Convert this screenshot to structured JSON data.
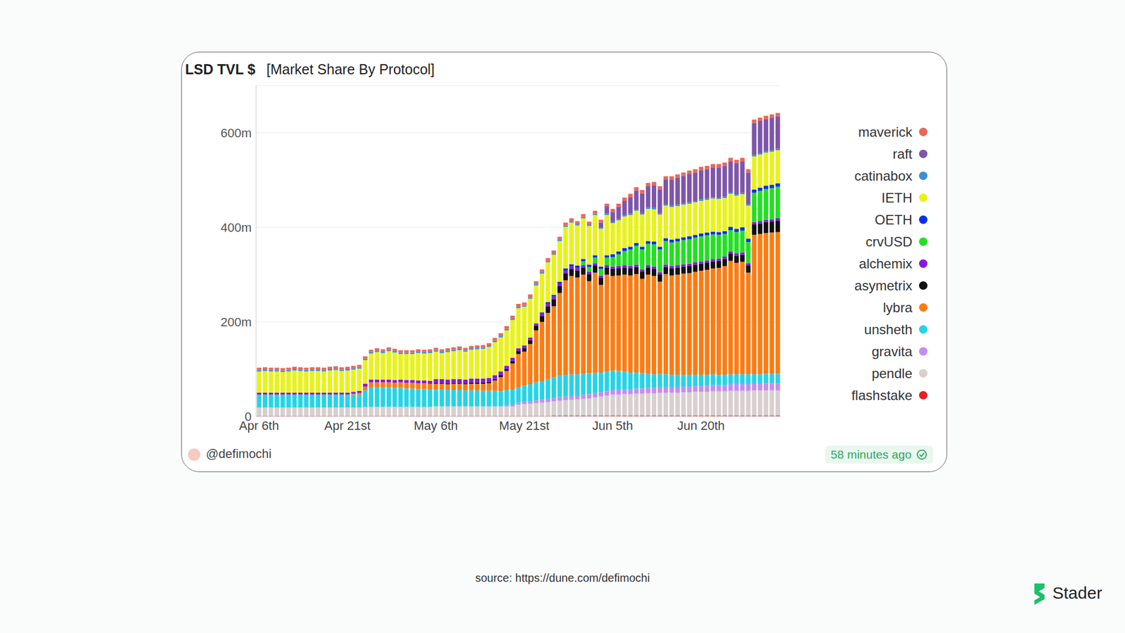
{
  "chart_data": {
    "type": "bar",
    "title": "LSD TVL $",
    "subtitle": "[Market Share By Protocol]",
    "credit": "@defimochi",
    "updated": "58 minutes ago",
    "categories": [
      "Apr 6th",
      null,
      null,
      null,
      null,
      null,
      null,
      null,
      null,
      null,
      null,
      null,
      null,
      null,
      null,
      "Apr 21st",
      null,
      null,
      null,
      null,
      null,
      null,
      null,
      null,
      null,
      null,
      null,
      null,
      null,
      null,
      "May 6th",
      null,
      null,
      null,
      null,
      null,
      null,
      null,
      null,
      null,
      null,
      null,
      null,
      null,
      null,
      "May 21st",
      null,
      null,
      null,
      null,
      null,
      null,
      null,
      null,
      null,
      null,
      null,
      null,
      null,
      null,
      "Jun 5th",
      null,
      null,
      null,
      null,
      null,
      null,
      null,
      null,
      null,
      null,
      null,
      null,
      null,
      null,
      "Jun 20th",
      null,
      null,
      null,
      null,
      null,
      null,
      null,
      null,
      null,
      null,
      null,
      null,
      null
    ],
    "ylim": [
      0,
      700
    ],
    "yticks": [
      0,
      {
        "value": 200,
        "label": "200m"
      },
      {
        "value": 400,
        "label": "400m"
      },
      {
        "value": 600,
        "label": "600m"
      }
    ],
    "grid": true,
    "stacked": true,
    "legend": "right",
    "series": [
      {
        "name": "flashstake",
        "color": "#e3231f",
        "values": [
          1,
          1,
          1,
          1,
          1,
          1,
          1,
          1,
          1,
          1,
          1,
          1,
          1,
          1,
          1,
          1,
          1,
          1,
          1,
          1,
          1,
          1,
          1,
          1,
          1,
          1,
          1,
          1,
          1,
          1,
          1,
          1,
          1,
          1,
          1,
          1,
          1,
          1,
          1,
          1,
          1,
          1,
          1,
          1,
          1,
          1,
          1,
          1,
          1,
          1,
          2,
          2,
          2,
          2,
          2,
          2,
          2,
          2,
          2,
          2,
          2,
          2,
          2,
          2,
          2,
          2,
          2,
          2,
          2,
          2,
          2,
          2,
          2,
          2,
          2,
          2,
          2,
          2,
          2,
          2,
          2,
          2,
          2,
          2,
          2,
          2,
          2,
          2,
          2
        ]
      },
      {
        "name": "pendle",
        "color": "#d9cfcf",
        "values": [
          18,
          18,
          18,
          18,
          18,
          18,
          18,
          18,
          18,
          18,
          18,
          18,
          18,
          18,
          18,
          18,
          18,
          18,
          19,
          19,
          19,
          19,
          19,
          19,
          19,
          19,
          19,
          19,
          19,
          19,
          20,
          20,
          20,
          20,
          20,
          20,
          20,
          20,
          20,
          20,
          20,
          20,
          20,
          20,
          24,
          25,
          26,
          27,
          28,
          29,
          30,
          31,
          32,
          33,
          34,
          35,
          36,
          38,
          40,
          42,
          44,
          44,
          45,
          45,
          46,
          46,
          47,
          47,
          48,
          48,
          48,
          48,
          49,
          49,
          50,
          50,
          50,
          51,
          51,
          51,
          52,
          52,
          52,
          52,
          53,
          53,
          53,
          53,
          53
        ]
      },
      {
        "name": "gravita",
        "color": "#c58df0",
        "values": [
          0,
          0,
          0,
          0,
          0,
          0,
          0,
          0,
          0,
          0,
          0,
          0,
          0,
          0,
          0,
          0,
          0,
          0,
          0,
          0,
          0,
          0,
          0,
          0,
          0,
          0,
          0,
          0,
          0,
          0,
          0,
          0,
          0,
          0,
          0,
          0,
          0,
          0,
          0,
          0,
          0,
          0,
          3,
          4,
          4,
          5,
          5,
          6,
          6,
          7,
          7,
          8,
          8,
          8,
          8,
          9,
          9,
          9,
          9,
          9,
          10,
          10,
          10,
          10,
          11,
          11,
          11,
          11,
          12,
          12,
          12,
          12,
          12,
          12,
          12,
          12,
          13,
          13,
          13,
          13,
          14,
          14,
          14,
          14,
          14,
          14,
          15,
          15,
          15
        ]
      },
      {
        "name": "unsheth",
        "color": "#27d3e6",
        "values": [
          27,
          27,
          27,
          27,
          27,
          27,
          27,
          27,
          27,
          27,
          27,
          27,
          27,
          27,
          27,
          27,
          27,
          27,
          35,
          42,
          42,
          41,
          41,
          40,
          40,
          39,
          39,
          38,
          38,
          37,
          36,
          36,
          35,
          35,
          35,
          34,
          34,
          34,
          33,
          33,
          33,
          32,
          32,
          32,
          33,
          34,
          36,
          38,
          40,
          42,
          44,
          45,
          46,
          46,
          45,
          44,
          44,
          43,
          42,
          42,
          41,
          40,
          38,
          36,
          34,
          32,
          30,
          29,
          28,
          27,
          26,
          26,
          25,
          25,
          24,
          24,
          23,
          23,
          22,
          22,
          21,
          21,
          21,
          21,
          20,
          20,
          20,
          20,
          20
        ]
      },
      {
        "name": "lybra",
        "color": "#ff7b12",
        "values": [
          0,
          0,
          0,
          0,
          0,
          0,
          0,
          0,
          0,
          0,
          0,
          0,
          0,
          0,
          0,
          0,
          2,
          4,
          8,
          10,
          10,
          11,
          11,
          11,
          12,
          12,
          12,
          12,
          12,
          12,
          12,
          12,
          12,
          13,
          13,
          13,
          14,
          14,
          15,
          16,
          22,
          30,
          40,
          55,
          70,
          72,
          85,
          110,
          125,
          140,
          150,
          175,
          200,
          208,
          205,
          210,
          195,
          212,
          185,
          205,
          200,
          202,
          205,
          205,
          208,
          200,
          210,
          208,
          195,
          212,
          210,
          212,
          214,
          215,
          218,
          220,
          222,
          224,
          226,
          230,
          240,
          236,
          238,
          215,
          295,
          297,
          298,
          299,
          300
        ]
      },
      {
        "name": "asymetrix",
        "color": "#111111",
        "values": [
          0,
          0,
          0,
          0,
          0,
          0,
          0,
          0,
          0,
          0,
          0,
          0,
          0,
          0,
          0,
          0,
          0,
          0,
          0,
          0,
          0,
          0,
          0,
          0,
          0,
          0,
          0,
          0,
          0,
          0,
          2,
          2,
          2,
          2,
          2,
          2,
          3,
          3,
          3,
          3,
          3,
          4,
          4,
          5,
          6,
          7,
          8,
          10,
          12,
          14,
          15,
          15,
          15,
          15,
          15,
          15,
          15,
          15,
          15,
          15,
          15,
          15,
          15,
          15,
          15,
          15,
          15,
          15,
          15,
          15,
          15,
          15,
          15,
          15,
          15,
          15,
          15,
          15,
          15,
          15,
          15,
          15,
          15,
          15,
          22,
          22,
          23,
          23,
          24
        ]
      },
      {
        "name": "alchemix",
        "color": "#8a17e0",
        "values": [
          4,
          4,
          4,
          4,
          4,
          4,
          4,
          4,
          4,
          4,
          4,
          4,
          4,
          4,
          4,
          4,
          4,
          4,
          6,
          6,
          6,
          6,
          6,
          6,
          6,
          6,
          6,
          6,
          6,
          6,
          8,
          8,
          8,
          8,
          8,
          8,
          8,
          8,
          8,
          8,
          8,
          8,
          7,
          7,
          6,
          6,
          6,
          5,
          5,
          5,
          5,
          5,
          5,
          5,
          5,
          5,
          5,
          5,
          5,
          5,
          5,
          5,
          5,
          5,
          5,
          5,
          5,
          5,
          5,
          5,
          5,
          5,
          5,
          5,
          5,
          5,
          5,
          5,
          5,
          5,
          5,
          5,
          5,
          5,
          5,
          5,
          5,
          5,
          5
        ]
      },
      {
        "name": "crvUSD",
        "color": "#22e022",
        "values": [
          0,
          0,
          0,
          0,
          0,
          0,
          0,
          0,
          0,
          0,
          0,
          0,
          0,
          0,
          0,
          0,
          0,
          0,
          0,
          0,
          0,
          0,
          0,
          0,
          0,
          0,
          0,
          0,
          0,
          0,
          0,
          0,
          0,
          0,
          0,
          0,
          0,
          0,
          0,
          0,
          0,
          0,
          0,
          0,
          0,
          0,
          0,
          0,
          0,
          0,
          0,
          0,
          0,
          0,
          0,
          8,
          10,
          12,
          14,
          16,
          20,
          25,
          30,
          35,
          40,
          42,
          45,
          47,
          48,
          50,
          50,
          50,
          51,
          52,
          52,
          53,
          53,
          52,
          50,
          48,
          45,
          45,
          46,
          45,
          62,
          64,
          65,
          66,
          67
        ]
      },
      {
        "name": "OETH",
        "color": "#0b30e8",
        "values": [
          0,
          0,
          0,
          0,
          0,
          0,
          0,
          0,
          0,
          0,
          0,
          0,
          0,
          0,
          0,
          0,
          0,
          0,
          0,
          0,
          0,
          0,
          0,
          0,
          0,
          0,
          0,
          0,
          0,
          0,
          0,
          0,
          0,
          0,
          0,
          0,
          0,
          0,
          0,
          0,
          0,
          0,
          0,
          0,
          0,
          0,
          0,
          0,
          3,
          4,
          4,
          4,
          5,
          5,
          5,
          5,
          5,
          5,
          5,
          5,
          6,
          6,
          6,
          6,
          6,
          6,
          6,
          6,
          6,
          6,
          6,
          6,
          6,
          6,
          6,
          6,
          6,
          6,
          6,
          6,
          7,
          7,
          7,
          7,
          7,
          7,
          7,
          7,
          7
        ]
      },
      {
        "name": "IETH",
        "color": "#e8f21c",
        "values": [
          45,
          46,
          45,
          45,
          44,
          45,
          47,
          46,
          45,
          46,
          46,
          45,
          47,
          48,
          46,
          47,
          47,
          47,
          50,
          55,
          58,
          56,
          60,
          58,
          54,
          55,
          55,
          58,
          57,
          59,
          58,
          55,
          58,
          59,
          61,
          59,
          61,
          62,
          63,
          66,
          70,
          72,
          75,
          80,
          85,
          82,
          82,
          80,
          82,
          84,
          85,
          86,
          88,
          88,
          85,
          86,
          82,
          85,
          80,
          85,
          66,
          66,
          67,
          67,
          68,
          68,
          68,
          68,
          68,
          69,
          69,
          69,
          69,
          69,
          69,
          69,
          69,
          70,
          70,
          70,
          70,
          70,
          70,
          70,
          70,
          70,
          70,
          70,
          70
        ]
      },
      {
        "name": "catinabox",
        "color": "#3a8fd2",
        "values": [
          3,
          3,
          3,
          3,
          3,
          3,
          3,
          3,
          3,
          3,
          3,
          3,
          3,
          3,
          3,
          3,
          3,
          3,
          3,
          3,
          3,
          3,
          3,
          3,
          3,
          3,
          3,
          3,
          3,
          3,
          3,
          3,
          3,
          3,
          3,
          3,
          3,
          3,
          3,
          3,
          3,
          3,
          3,
          3,
          3,
          3,
          3,
          3,
          3,
          3,
          3,
          3,
          3,
          3,
          3,
          3,
          3,
          3,
          3,
          3,
          3,
          3,
          3,
          3,
          3,
          3,
          3,
          3,
          3,
          3,
          3,
          3,
          3,
          3,
          3,
          3,
          3,
          3,
          3,
          3,
          3,
          3,
          3,
          3,
          3,
          3,
          3,
          3,
          3
        ]
      },
      {
        "name": "raft",
        "color": "#7d56a8",
        "values": [
          0,
          0,
          0,
          0,
          0,
          0,
          0,
          0,
          0,
          0,
          0,
          0,
          0,
          0,
          0,
          0,
          0,
          0,
          0,
          0,
          0,
          0,
          0,
          0,
          0,
          0,
          0,
          0,
          0,
          0,
          0,
          0,
          0,
          0,
          0,
          0,
          0,
          0,
          0,
          0,
          0,
          0,
          0,
          0,
          0,
          0,
          0,
          0,
          0,
          0,
          0,
          0,
          0,
          0,
          0,
          0,
          0,
          0,
          10,
          15,
          20,
          25,
          30,
          35,
          40,
          42,
          45,
          48,
          50,
          52,
          55,
          57,
          58,
          60,
          60,
          62,
          62,
          63,
          64,
          65,
          66,
          66,
          67,
          67,
          68,
          68,
          68,
          69,
          69
        ]
      },
      {
        "name": "maverick",
        "color": "#e9685b",
        "values": [
          5,
          5,
          5,
          5,
          5,
          5,
          5,
          5,
          5,
          5,
          5,
          5,
          5,
          5,
          5,
          5,
          5,
          5,
          5,
          5,
          5,
          5,
          5,
          5,
          5,
          5,
          5,
          5,
          5,
          5,
          5,
          5,
          5,
          5,
          5,
          5,
          5,
          5,
          5,
          5,
          6,
          6,
          6,
          6,
          6,
          6,
          6,
          6,
          6,
          6,
          6,
          6,
          6,
          6,
          6,
          6,
          6,
          6,
          6,
          6,
          7,
          7,
          7,
          7,
          7,
          7,
          7,
          7,
          7,
          7,
          7,
          7,
          7,
          7,
          7,
          7,
          7,
          7,
          7,
          7,
          7,
          7,
          7,
          7,
          7,
          7,
          7,
          7,
          7
        ]
      }
    ]
  },
  "footer": {
    "source": "source: https://dune.com/defimochi",
    "brand": "Stader"
  }
}
